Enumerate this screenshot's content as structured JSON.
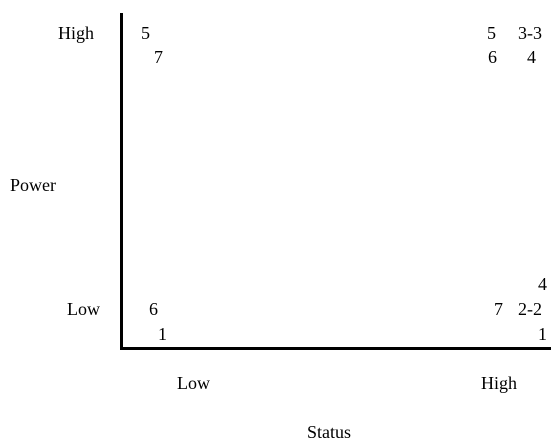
{
  "axes": {
    "y_label": "Power",
    "y_high": "High",
    "y_low": "Low",
    "x_label": "Status",
    "x_low": "Low",
    "x_high": "High"
  },
  "cells": {
    "low_status_high_power": [
      "5",
      "7"
    ],
    "high_status_high_power": [
      "5",
      "3-3",
      "6",
      "4"
    ],
    "low_status_low_power": [
      "6",
      "1"
    ],
    "high_status_low_power": [
      "4",
      "7",
      "2-2",
      "1"
    ]
  }
}
